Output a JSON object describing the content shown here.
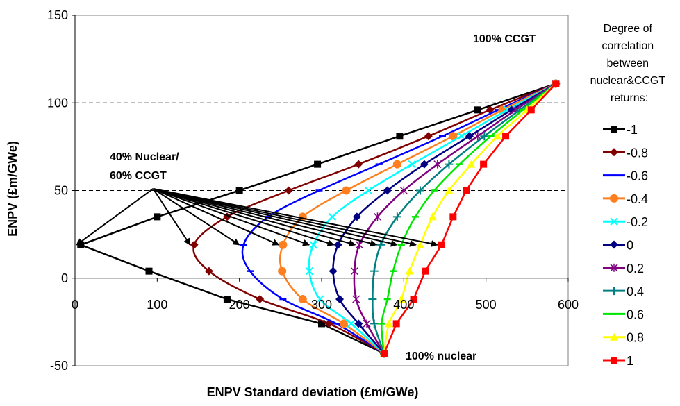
{
  "chart_data": {
    "type": "line",
    "xlabel": "ENPV Standard deviation (£m/GWe)",
    "ylabel": "ENPV (£m/GWe)",
    "xlim": [
      0,
      600
    ],
    "ylim": [
      -50,
      150
    ],
    "xticks": [
      0,
      100,
      200,
      300,
      400,
      500,
      600
    ],
    "yticks": [
      -50,
      0,
      50,
      100,
      150
    ],
    "grid": "horizontal dashed at 50 and 100",
    "legend_position": "right",
    "legend_title": "Degree of correlation between nuclear&CCGT returns:",
    "annotations": {
      "ccgt": "100% CCGT",
      "nuclear": "100% nuclear",
      "mix": [
        "40% Nuclear/",
        "60% CCGT"
      ]
    },
    "series": [
      {
        "name": "-1",
        "color": "#000000",
        "marker": "square",
        "points": [
          [
            376,
            -43
          ],
          [
            300,
            -26
          ],
          [
            185,
            -12
          ],
          [
            90,
            4
          ],
          [
            7,
            19
          ],
          [
            100,
            35
          ],
          [
            200,
            50
          ],
          [
            295,
            65
          ],
          [
            395,
            81
          ],
          [
            490,
            96
          ],
          [
            585,
            111
          ]
        ]
      },
      {
        "name": "-0.8",
        "color": "#800000",
        "marker": "diamond",
        "points": [
          [
            376,
            -43
          ],
          [
            309,
            -26
          ],
          [
            225,
            -12
          ],
          [
            163,
            4
          ],
          [
            145,
            19
          ],
          [
            185,
            35
          ],
          [
            260,
            50
          ],
          [
            345,
            65
          ],
          [
            430,
            81
          ],
          [
            505,
            96
          ],
          [
            585,
            111
          ]
        ]
      },
      {
        "name": "-0.6",
        "color": "#0000ff",
        "marker": "dash",
        "points": [
          [
            376,
            -43
          ],
          [
            318,
            -26
          ],
          [
            253,
            -12
          ],
          [
            213,
            4
          ],
          [
            205,
            19
          ],
          [
            235,
            35
          ],
          [
            297,
            50
          ],
          [
            370,
            65
          ],
          [
            447,
            81
          ],
          [
            515,
            96
          ],
          [
            585,
            111
          ]
        ]
      },
      {
        "name": "-0.4",
        "color": "#ff7f1e",
        "marker": "circle",
        "points": [
          [
            376,
            -43
          ],
          [
            327,
            -26
          ],
          [
            277,
            -12
          ],
          [
            252,
            4
          ],
          [
            253,
            19
          ],
          [
            277,
            35
          ],
          [
            330,
            50
          ],
          [
            392,
            65
          ],
          [
            460,
            81
          ],
          [
            520,
            96
          ],
          [
            585,
            111
          ]
        ]
      },
      {
        "name": "-0.2",
        "color": "#00ffff",
        "marker": "x",
        "points": [
          [
            376,
            -43
          ],
          [
            336,
            -26
          ],
          [
            298,
            -12
          ],
          [
            285,
            4
          ],
          [
            290,
            19
          ],
          [
            313,
            35
          ],
          [
            357,
            50
          ],
          [
            410,
            65
          ],
          [
            470,
            81
          ],
          [
            526,
            96
          ],
          [
            585,
            111
          ]
        ]
      },
      {
        "name": "0",
        "color": "#000080",
        "marker": "diamond",
        "points": [
          [
            376,
            -43
          ],
          [
            345,
            -26
          ],
          [
            322,
            -12
          ],
          [
            314,
            4
          ],
          [
            320,
            19
          ],
          [
            343,
            35
          ],
          [
            380,
            50
          ],
          [
            425,
            65
          ],
          [
            480,
            81
          ],
          [
            531,
            96
          ],
          [
            585,
            111
          ]
        ]
      },
      {
        "name": "0.2",
        "color": "#800080",
        "marker": "asterisk",
        "points": [
          [
            376,
            -43
          ],
          [
            355,
            -26
          ],
          [
            342,
            -12
          ],
          [
            340,
            4
          ],
          [
            346,
            19
          ],
          [
            368,
            35
          ],
          [
            400,
            50
          ],
          [
            441,
            65
          ],
          [
            490,
            81
          ],
          [
            536,
            96
          ],
          [
            585,
            111
          ]
        ]
      },
      {
        "name": "0.4",
        "color": "#008080",
        "marker": "plus",
        "points": [
          [
            376,
            -43
          ],
          [
            364,
            -26
          ],
          [
            362,
            -12
          ],
          [
            364,
            4
          ],
          [
            372,
            19
          ],
          [
            392,
            35
          ],
          [
            420,
            50
          ],
          [
            455,
            65
          ],
          [
            498,
            81
          ],
          [
            541,
            96
          ],
          [
            585,
            111
          ]
        ]
      },
      {
        "name": "0.6",
        "color": "#00e600",
        "marker": "dash",
        "points": [
          [
            376,
            -43
          ],
          [
            373,
            -26
          ],
          [
            380,
            -12
          ],
          [
            387,
            4
          ],
          [
            397,
            19
          ],
          [
            414,
            35
          ],
          [
            437,
            50
          ],
          [
            468,
            65
          ],
          [
            506,
            81
          ],
          [
            545,
            96
          ],
          [
            585,
            111
          ]
        ]
      },
      {
        "name": "0.8",
        "color": "#ffff00",
        "marker": "triangle",
        "points": [
          [
            376,
            -43
          ],
          [
            382,
            -26
          ],
          [
            397,
            -12
          ],
          [
            407,
            4
          ],
          [
            420,
            19
          ],
          [
            435,
            35
          ],
          [
            455,
            50
          ],
          [
            482,
            65
          ],
          [
            514,
            81
          ],
          [
            550,
            96
          ],
          [
            585,
            111
          ]
        ]
      },
      {
        "name": "1",
        "color": "#ff0000",
        "marker": "square",
        "points": [
          [
            376,
            -43
          ],
          [
            391,
            -26
          ],
          [
            412,
            -12
          ],
          [
            426,
            4
          ],
          [
            446,
            19
          ],
          [
            460,
            35
          ],
          [
            476,
            50
          ],
          [
            497,
            65
          ],
          [
            524,
            81
          ],
          [
            555,
            96
          ],
          [
            585,
            111
          ]
        ]
      }
    ]
  }
}
